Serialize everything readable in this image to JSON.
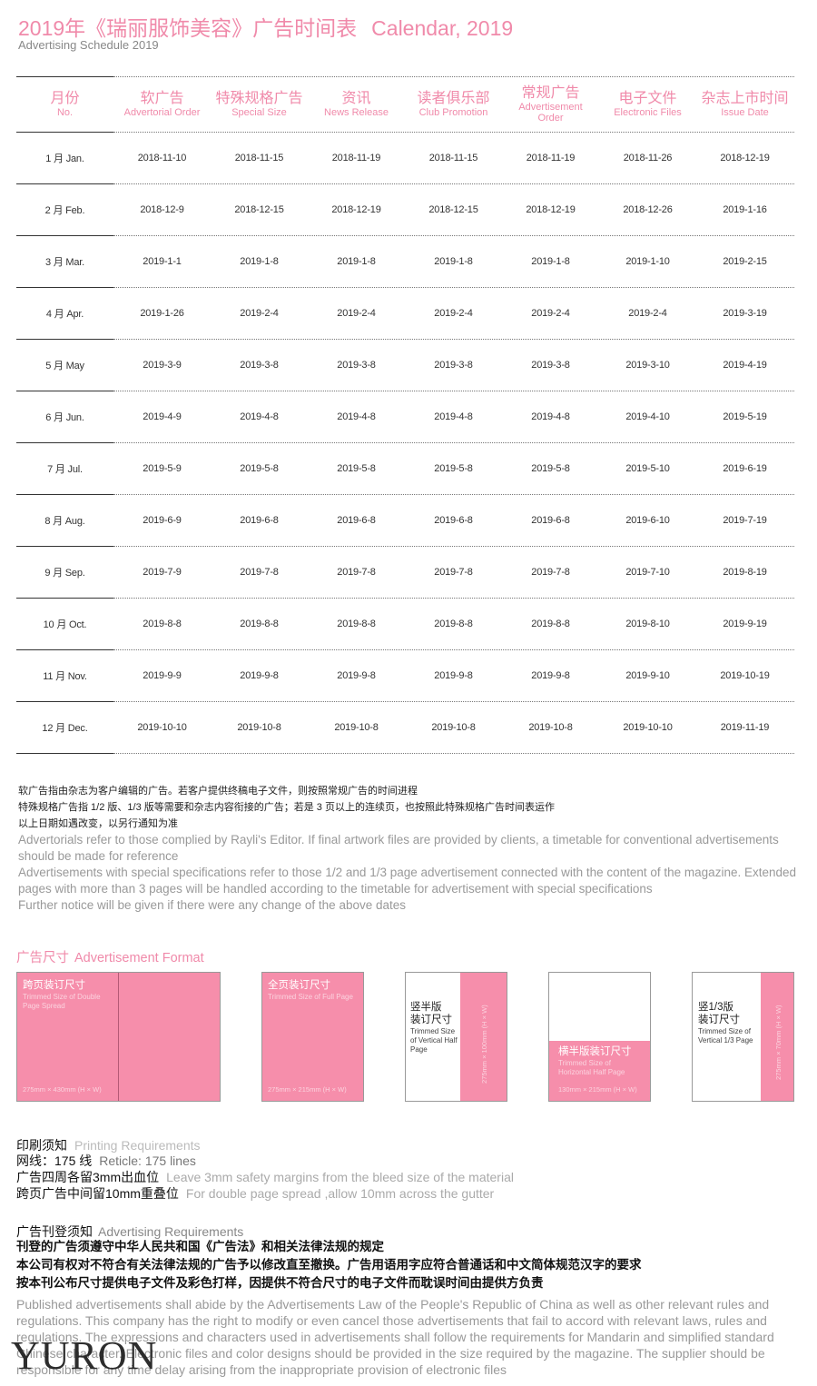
{
  "header": {
    "title_zh": "2019年《瑞丽服饰美容》广告时间表",
    "title_en": "Calendar, 2019",
    "subtitle": "Advertising Schedule 2019"
  },
  "table": {
    "columns": [
      {
        "zh": "月份",
        "en": "No."
      },
      {
        "zh": "软广告",
        "en": "Advertorial Order"
      },
      {
        "zh": "特殊规格广告",
        "en": "Special Size"
      },
      {
        "zh": "资讯",
        "en": "News Release"
      },
      {
        "zh": "读者俱乐部",
        "en": "Club Promotion"
      },
      {
        "zh": "常规广告",
        "en": "Advertisement Order"
      },
      {
        "zh": "电子文件",
        "en": "Electronic Files"
      },
      {
        "zh": "杂志上市时间",
        "en": "Issue Date"
      }
    ],
    "rows": [
      [
        "1 月 Jan.",
        "2018-11-10",
        "2018-11-15",
        "2018-11-19",
        "2018-11-15",
        "2018-11-19",
        "2018-11-26",
        "2018-12-19"
      ],
      [
        "2 月 Feb.",
        "2018-12-9",
        "2018-12-15",
        "2018-12-19",
        "2018-12-15",
        "2018-12-19",
        "2018-12-26",
        "2019-1-16"
      ],
      [
        "3 月 Mar.",
        "2019-1-1",
        "2019-1-8",
        "2019-1-8",
        "2019-1-8",
        "2019-1-8",
        "2019-1-10",
        "2019-2-15"
      ],
      [
        "4 月 Apr.",
        "2019-1-26",
        "2019-2-4",
        "2019-2-4",
        "2019-2-4",
        "2019-2-4",
        "2019-2-4",
        "2019-3-19"
      ],
      [
        "5 月 May",
        "2019-3-9",
        "2019-3-8",
        "2019-3-8",
        "2019-3-8",
        "2019-3-8",
        "2019-3-10",
        "2019-4-19"
      ],
      [
        "6 月 Jun.",
        "2019-4-9",
        "2019-4-8",
        "2019-4-8",
        "2019-4-8",
        "2019-4-8",
        "2019-4-10",
        "2019-5-19"
      ],
      [
        "7 月 Jul.",
        "2019-5-9",
        "2019-5-8",
        "2019-5-8",
        "2019-5-8",
        "2019-5-8",
        "2019-5-10",
        "2019-6-19"
      ],
      [
        "8 月 Aug.",
        "2019-6-9",
        "2019-6-8",
        "2019-6-8",
        "2019-6-8",
        "2019-6-8",
        "2019-6-10",
        "2019-7-19"
      ],
      [
        "9 月 Sep.",
        "2019-7-9",
        "2019-7-8",
        "2019-7-8",
        "2019-7-8",
        "2019-7-8",
        "2019-7-10",
        "2019-8-19"
      ],
      [
        "10 月 Oct.",
        "2019-8-8",
        "2019-8-8",
        "2019-8-8",
        "2019-8-8",
        "2019-8-8",
        "2019-8-10",
        "2019-9-19"
      ],
      [
        "11 月 Nov.",
        "2019-9-9",
        "2019-9-8",
        "2019-9-8",
        "2019-9-8",
        "2019-9-8",
        "2019-9-10",
        "2019-10-19"
      ],
      [
        "12 月 Dec.",
        "2019-10-10",
        "2019-10-8",
        "2019-10-8",
        "2019-10-8",
        "2019-10-8",
        "2019-10-10",
        "2019-11-19"
      ]
    ]
  },
  "notes": {
    "zh": [
      "软广告指由杂志为客户编辑的广告。若客户提供终稿电子文件，则按照常规广告的时间进程",
      "特殊规格广告指 1/2 版、1/3 版等需要和杂志内容衔接的广告；若是 3 页以上的连续页，也按照此特殊规格广告时间表运作",
      "以上日期如遇改变，以另行通知为准"
    ],
    "en": [
      "Advertorials refer to those complied by Rayli's Editor. If final artwork files are provided by clients, a timetable for conventional advertisements should be made for reference",
      "Advertisements with special specifications refer to those 1/2 and 1/3 page advertisement connected with the content of the magazine. Extended pages with more than 3 pages will be handled according to the timetable for advertisement with special specifications",
      "Further notice will be given if there were any change of the above dates"
    ]
  },
  "formats": {
    "title_zh": "广告尺寸",
    "title_en": "Advertisement Format",
    "items": [
      {
        "zh": "跨页装订尺寸",
        "en": "Trimmed Size of Double Page Spread",
        "size": "275mm × 430mm (H × W)"
      },
      {
        "zh": "全页装订尺寸",
        "en": "Trimmed Size of Full Page",
        "size": "275mm × 215mm (H × W)"
      },
      {
        "zh": "竖半版装订尺寸",
        "zh_line1": "竖半版",
        "zh_line2": "装订尺寸",
        "en": "Trimmed Size of Vertical Half Page",
        "size": "275mm × 100mm (H × W)"
      },
      {
        "zh": "横半版装订尺寸",
        "en": "Trimmed Size of Horizontal Half Page",
        "size": "130mm × 215mm (H × W)"
      },
      {
        "zh": "竖1/3版装订尺寸",
        "zh_line1": "竖1/3版",
        "zh_line2": "装订尺寸",
        "en": "Trimmed Size of Vertical 1/3 Page",
        "size": "275mm × 70mm (H × W)"
      }
    ]
  },
  "printing": {
    "title_zh": "印刷须知",
    "title_en": "Printing Requirements",
    "lines": [
      {
        "zh": "网线：175 线",
        "en": "Reticle: 175 lines"
      },
      {
        "zh": "广告四周各留3mm出血位",
        "en": "Leave 3mm safety margins from the bleed size of the material"
      },
      {
        "zh": "跨页广告中间留10mm重叠位",
        "en": "For double page spread ,allow 10mm across the gutter"
      }
    ]
  },
  "advertising": {
    "title_zh": "广告刊登须知",
    "title_en": "Advertising Requirements",
    "zh": [
      "刊登的广告须遵守中华人民共和国《广告法》和相关法律法规的规定",
      "本公司有权对不符合有关法律法规的广告予以修改直至撤换。广告用语用字应符合普通话和中文简体规范汉字的要求",
      "按本刊公布尺寸提供电子文件及彩色打样，因提供不符合尺寸的电子文件而耽误时间由提供方负责"
    ],
    "en": "Published advertisements shall abide by the Advertisements Law of the People's Republic of China as well as other relevant rules and regulations. This company has the right to modify or even cancel those advertisements that fail to accord with relevant laws, rules and regulations. The expressions and characters used in advertisements shall follow the requirements for Mandarin and simplified standard Chinese character. Electronic files and color designs should be provided in the size required by the magazine. The supplier should be responsible for any time delay arising from the inappropriate provision of electronic files"
  },
  "logo": "YURON",
  "colors": {
    "accent": "#f08aaa",
    "fill": "#f68eab"
  }
}
